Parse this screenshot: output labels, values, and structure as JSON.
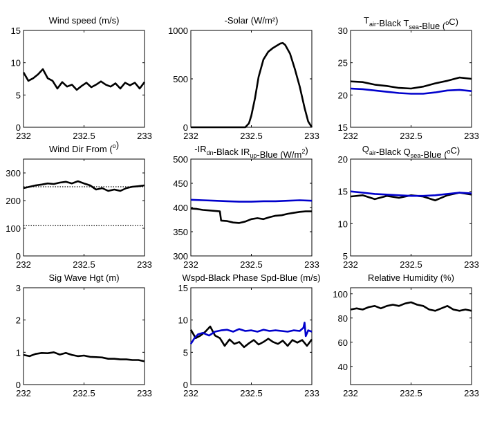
{
  "chart_data": [
    {
      "type": "line",
      "title": "Wind speed (m/s)",
      "xlim": [
        232,
        233
      ],
      "ylim": [
        0,
        15
      ],
      "xticks": [
        "232",
        "232.5",
        "233"
      ],
      "yticks": [
        "0",
        "5",
        "10",
        "15"
      ],
      "series": [
        {
          "color": "#000000",
          "x": [
            232,
            232.04,
            232.08,
            232.12,
            232.16,
            232.2,
            232.24,
            232.28,
            232.32,
            232.36,
            232.4,
            232.44,
            232.48,
            232.52,
            232.56,
            232.6,
            232.64,
            232.68,
            232.72,
            232.76,
            232.8,
            232.84,
            232.88,
            232.92,
            232.96,
            233
          ],
          "y": [
            8.5,
            7.2,
            7.6,
            8.2,
            9.0,
            7.6,
            7.2,
            6.0,
            7.0,
            6.3,
            6.6,
            5.8,
            6.4,
            6.9,
            6.2,
            6.6,
            7.1,
            6.6,
            6.3,
            6.8,
            6.0,
            6.9,
            6.5,
            6.9,
            6.0,
            7.0
          ]
        }
      ]
    },
    {
      "type": "line",
      "title": "-Solar (W/m²)",
      "xlim": [
        232,
        233
      ],
      "ylim": [
        0,
        1000
      ],
      "xticks": [
        "232",
        "232.5",
        "233"
      ],
      "yticks": [
        "0",
        "500",
        "1000"
      ],
      "series": [
        {
          "color": "#000000",
          "x": [
            232,
            232.45,
            232.48,
            232.5,
            232.53,
            232.56,
            232.6,
            232.64,
            232.68,
            232.72,
            232.74,
            232.76,
            232.78,
            232.82,
            232.86,
            232.9,
            232.94,
            232.97,
            233
          ],
          "y": [
            0,
            0,
            40,
            120,
            300,
            520,
            700,
            780,
            820,
            850,
            865,
            870,
            850,
            760,
            600,
            420,
            200,
            60,
            0
          ]
        }
      ]
    },
    {
      "type": "line",
      "title_parts": {
        "a": "T",
        "a_sub": "air",
        "b": "-Black  T",
        "b_sub": "sea",
        "c": "-Blue (",
        "c_sup": "o",
        "d": "C)"
      },
      "xlim": [
        232,
        233
      ],
      "ylim": [
        15,
        30
      ],
      "xticks": [
        "232",
        "232.5",
        "233"
      ],
      "yticks": [
        "15",
        "20",
        "25",
        "30"
      ],
      "series": [
        {
          "color": "#000000",
          "x": [
            232,
            232.1,
            232.2,
            232.3,
            232.4,
            232.5,
            232.6,
            232.7,
            232.8,
            232.9,
            233
          ],
          "y": [
            22.1,
            22.0,
            21.6,
            21.4,
            21.1,
            21.0,
            21.3,
            21.8,
            22.2,
            22.7,
            22.5
          ]
        },
        {
          "color": "#0000cc",
          "x": [
            232,
            232.1,
            232.2,
            232.3,
            232.4,
            232.5,
            232.6,
            232.7,
            232.8,
            232.9,
            233
          ],
          "y": [
            21.0,
            20.9,
            20.7,
            20.5,
            20.3,
            20.2,
            20.2,
            20.4,
            20.7,
            20.8,
            20.6
          ]
        }
      ]
    },
    {
      "type": "line",
      "title_parts": {
        "a": "Wind Dir From (",
        "a_sup": "o",
        "b": ")"
      },
      "xlim": [
        232,
        233
      ],
      "ylim": [
        0,
        350
      ],
      "xticks": [
        "232",
        "232.5",
        "233"
      ],
      "yticks": [
        "0",
        "100",
        "200",
        "300"
      ],
      "series": [
        {
          "color": "#000000",
          "x": [
            232,
            232.05,
            232.1,
            232.15,
            232.2,
            232.25,
            232.3,
            232.35,
            232.4,
            232.45,
            232.5,
            232.55,
            232.6,
            232.65,
            232.7,
            232.75,
            232.8,
            232.85,
            232.9,
            232.95,
            233
          ],
          "y": [
            245,
            250,
            255,
            258,
            262,
            260,
            265,
            268,
            262,
            270,
            262,
            255,
            240,
            245,
            235,
            240,
            235,
            245,
            250,
            252,
            255
          ]
        },
        {
          "color": "#000000",
          "style": "dotted",
          "x": [
            232,
            233
          ],
          "y": [
            250,
            250
          ]
        },
        {
          "color": "#000000",
          "style": "dotted",
          "x": [
            232,
            233
          ],
          "y": [
            110,
            110
          ]
        }
      ]
    },
    {
      "type": "line",
      "title_parts": {
        "a": "-IR",
        "a_sub": "dn",
        "b": "-Black  IR",
        "b_sub": "up",
        "c": "-Blue (W/m",
        "c_sup": "2",
        "d": ")"
      },
      "xlim": [
        232,
        233
      ],
      "ylim": [
        300,
        500
      ],
      "xticks": [
        "232",
        "232.5",
        "233"
      ],
      "yticks": [
        "300",
        "350",
        "400",
        "450",
        "500"
      ],
      "series": [
        {
          "color": "#000000",
          "x": [
            232,
            232.05,
            232.1,
            232.15,
            232.2,
            232.24,
            232.25,
            232.3,
            232.35,
            232.4,
            232.45,
            232.5,
            232.55,
            232.6,
            232.65,
            232.7,
            232.75,
            232.8,
            232.85,
            232.9,
            232.95,
            233
          ],
          "y": [
            398,
            397,
            395,
            394,
            393,
            392,
            373,
            372,
            369,
            368,
            371,
            376,
            378,
            376,
            380,
            383,
            384,
            387,
            389,
            391,
            392,
            392
          ]
        },
        {
          "color": "#0000cc",
          "x": [
            232,
            232.1,
            232.2,
            232.3,
            232.4,
            232.5,
            232.6,
            232.7,
            232.8,
            232.9,
            233
          ],
          "y": [
            416,
            415,
            414,
            413,
            412,
            412,
            413,
            413,
            414,
            415,
            414
          ]
        }
      ]
    },
    {
      "type": "line",
      "title_parts": {
        "a": "Q",
        "a_sub": "air",
        "b": "-Black  Q",
        "b_sub": "sea",
        "c": "-Blue (",
        "c_sup": "o",
        "d": "C)"
      },
      "xlim": [
        232,
        233
      ],
      "ylim": [
        5,
        20
      ],
      "xticks": [
        "232",
        "232.5",
        "233"
      ],
      "yticks": [
        "5",
        "10",
        "15",
        "20"
      ],
      "series": [
        {
          "color": "#000000",
          "x": [
            232,
            232.1,
            232.2,
            232.3,
            232.4,
            232.5,
            232.6,
            232.7,
            232.8,
            232.9,
            233
          ],
          "y": [
            14.2,
            14.4,
            13.8,
            14.3,
            14.0,
            14.4,
            14.2,
            13.6,
            14.4,
            14.8,
            14.5
          ]
        },
        {
          "color": "#0000cc",
          "x": [
            232,
            232.1,
            232.2,
            232.3,
            232.4,
            232.5,
            232.6,
            232.7,
            232.8,
            232.9,
            233
          ],
          "y": [
            15.0,
            14.8,
            14.6,
            14.5,
            14.4,
            14.3,
            14.3,
            14.4,
            14.6,
            14.8,
            14.7
          ]
        }
      ]
    },
    {
      "type": "line",
      "title": "Sig Wave Hgt (m)",
      "xlim": [
        232,
        233
      ],
      "ylim": [
        0,
        3
      ],
      "xticks": [
        "232",
        "232.5",
        "233"
      ],
      "yticks": [
        "0",
        "1",
        "2",
        "3"
      ],
      "series": [
        {
          "color": "#000000",
          "x": [
            232,
            232.05,
            232.1,
            232.15,
            232.2,
            232.25,
            232.3,
            232.35,
            232.4,
            232.45,
            232.5,
            232.55,
            232.6,
            232.65,
            232.7,
            232.75,
            232.8,
            232.85,
            232.9,
            232.95,
            233
          ],
          "y": [
            0.92,
            0.88,
            0.95,
            0.98,
            0.97,
            1.0,
            0.93,
            0.98,
            0.92,
            0.88,
            0.9,
            0.86,
            0.85,
            0.84,
            0.8,
            0.8,
            0.78,
            0.78,
            0.76,
            0.76,
            0.72
          ]
        }
      ]
    },
    {
      "type": "line",
      "title": "Wspd-Black  Phase Spd-Blue (m/s)",
      "xlim": [
        232,
        233
      ],
      "ylim": [
        0,
        15
      ],
      "xticks": [
        "232",
        "232.5",
        "233"
      ],
      "yticks": [
        "0",
        "5",
        "10",
        "15"
      ],
      "series": [
        {
          "color": "#000000",
          "x": [
            232,
            232.04,
            232.08,
            232.12,
            232.16,
            232.2,
            232.24,
            232.28,
            232.32,
            232.36,
            232.4,
            232.44,
            232.48,
            232.52,
            232.56,
            232.6,
            232.64,
            232.68,
            232.72,
            232.76,
            232.8,
            232.84,
            232.88,
            232.92,
            232.96,
            233
          ],
          "y": [
            8.5,
            7.2,
            7.6,
            8.2,
            9.0,
            7.6,
            7.2,
            6.0,
            7.0,
            6.3,
            6.6,
            5.8,
            6.4,
            6.9,
            6.2,
            6.6,
            7.1,
            6.6,
            6.3,
            6.8,
            6.0,
            6.9,
            6.5,
            6.9,
            6.0,
            7.0
          ]
        },
        {
          "color": "#0000cc",
          "x": [
            232,
            232.03,
            232.06,
            232.1,
            232.15,
            232.2,
            232.25,
            232.3,
            232.35,
            232.4,
            232.45,
            232.5,
            232.55,
            232.6,
            232.65,
            232.7,
            232.75,
            232.8,
            232.85,
            232.9,
            232.93,
            232.94,
            232.95,
            232.97,
            233
          ],
          "y": [
            6.3,
            7.2,
            7.8,
            8.0,
            7.6,
            8.2,
            8.4,
            8.5,
            8.2,
            8.6,
            8.3,
            8.4,
            8.2,
            8.5,
            8.3,
            8.4,
            8.3,
            8.2,
            8.4,
            8.3,
            8.8,
            9.6,
            7.5,
            8.4,
            8.2
          ]
        }
      ]
    },
    {
      "type": "line",
      "title": "Relative Humidity (%)",
      "xlim": [
        232,
        233
      ],
      "ylim": [
        25,
        105
      ],
      "xticks": [
        "232",
        "232.5",
        "233"
      ],
      "yticks": [
        "40",
        "60",
        "80",
        "100"
      ],
      "series": [
        {
          "color": "#000000",
          "x": [
            232,
            232.05,
            232.1,
            232.15,
            232.2,
            232.25,
            232.3,
            232.35,
            232.4,
            232.45,
            232.5,
            232.55,
            232.6,
            232.65,
            232.7,
            232.75,
            232.8,
            232.85,
            232.9,
            232.95,
            233
          ],
          "y": [
            87,
            88,
            87,
            89,
            90,
            88,
            90,
            91,
            90,
            92,
            93,
            91,
            90,
            87,
            86,
            88,
            90,
            87,
            86,
            87,
            86
          ]
        }
      ]
    }
  ]
}
